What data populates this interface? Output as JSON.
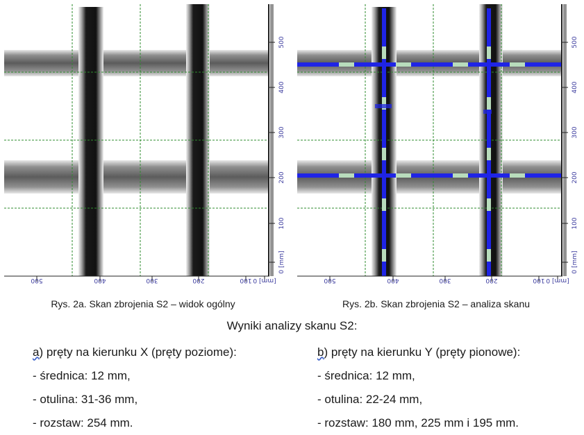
{
  "figures": [
    {
      "id": "a",
      "caption": "Rys. 2a. Skan zbrojenia S2 – widok ogólny",
      "x_axis_ticks": [
        "500",
        "400",
        "300",
        "200",
        "100",
        "[mm] 0"
      ],
      "y_axis_ticks": [
        "500",
        "400",
        "300",
        "200",
        "100",
        "0 [mm]"
      ],
      "overlay": false
    },
    {
      "id": "b",
      "caption": "Rys. 2b. Skan zbrojenia S2 – analiza skanu",
      "x_axis_ticks": [
        "500",
        "400",
        "300",
        "200",
        "100",
        "[mm] 0"
      ],
      "y_axis_ticks": [
        "500",
        "400",
        "300",
        "200",
        "100",
        "0 [mm]"
      ],
      "overlay": true
    }
  ],
  "results": {
    "heading": "Wyniki analizy skanu S2:",
    "x": {
      "letter": "a",
      "title_rest": ") pręty na kierunku X (pręty poziome):",
      "lines": [
        "- średnica: 12 mm,",
        "- otulina: 31-36 mm,",
        "- rozstaw: 254 mm."
      ]
    },
    "y": {
      "letter": "b",
      "title_rest": ") pręty na kierunku Y (pręty pionowe):",
      "lines": [
        "- średnica: 12 mm,",
        "- otulina: 22-24 mm,",
        "- rozstaw: 180 mm, 225 mm i 195 mm."
      ]
    }
  },
  "colors": {
    "rebar": "#111111",
    "grid": "#2e8b2e",
    "axis_label": "#3b3b9e",
    "overlay_blue": "#1f24e6",
    "overlay_light": "#b8dcbc"
  }
}
